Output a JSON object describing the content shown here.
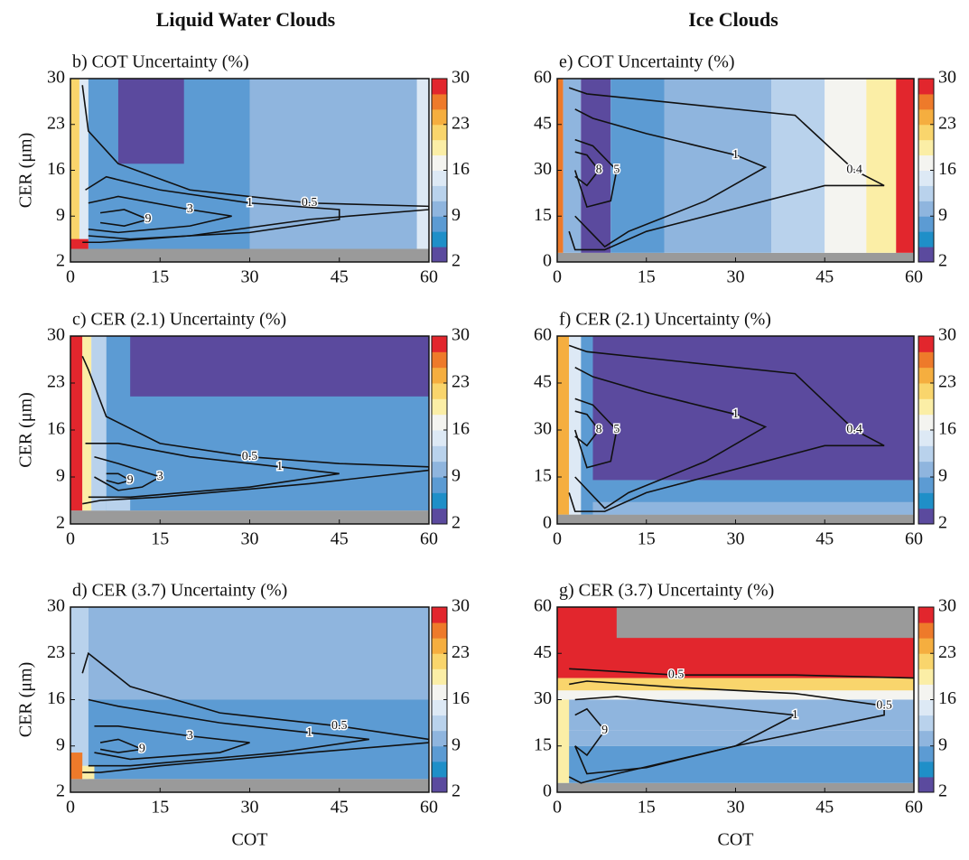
{
  "figure": {
    "column_titles": [
      "Liquid Water Clouds",
      "Ice Clouds"
    ]
  },
  "colorscale": [
    "#5b4a9e",
    "#1f8fc8",
    "#5c9bd3",
    "#8fb5de",
    "#b9d2ec",
    "#dde9f5",
    "#f4f4f0",
    "#fbeea6",
    "#f9d56c",
    "#f5ae3f",
    "#ee7a2a",
    "#e2262d"
  ],
  "missing_color": "#9a9a9a",
  "chart_data": [
    {
      "type": "heatmap",
      "title": "b) COT Uncertainty (%)",
      "ylabel": "CER (μm)",
      "xlim": [
        0,
        60
      ],
      "ylim": [
        2,
        30
      ],
      "xticks": [
        0,
        15,
        30,
        45,
        60
      ],
      "yticks": [
        2,
        9,
        16,
        23,
        30
      ],
      "clim": [
        2,
        30
      ],
      "cticks": [
        2,
        9,
        16,
        23,
        30
      ],
      "regions": [
        {
          "x": [
            0,
            60
          ],
          "y": [
            2,
            4
          ],
          "value": null
        },
        {
          "x": [
            0,
            1.5
          ],
          "y": [
            4,
            30
          ],
          "value": 22
        },
        {
          "x": [
            1.5,
            3
          ],
          "y": [
            4,
            30
          ],
          "value": 15
        },
        {
          "x": [
            3,
            30
          ],
          "y": [
            4,
            30
          ],
          "value": 7
        },
        {
          "x": [
            8,
            19
          ],
          "y": [
            17,
            30
          ],
          "value": 3
        },
        {
          "x": [
            30,
            58
          ],
          "y": [
            4,
            30
          ],
          "value": 11
        },
        {
          "x": [
            58,
            60
          ],
          "y": [
            4,
            30
          ],
          "value": 14
        },
        {
          "x": [
            0,
            3
          ],
          "y": [
            4,
            5.5
          ],
          "value": 30
        }
      ],
      "contours": [
        {
          "level": 0.5,
          "x": [
            2,
            3,
            8,
            20,
            40,
            60,
            60,
            40,
            20,
            5,
            2
          ],
          "y": [
            29,
            22,
            17,
            13,
            11,
            10.5,
            10,
            8.5,
            6,
            5,
            5
          ]
        },
        {
          "level": 1,
          "x": [
            2.5,
            6,
            15,
            30,
            45,
            45,
            30,
            10,
            3
          ],
          "y": [
            13,
            15,
            13,
            11,
            10,
            8.5,
            6.5,
            5.5,
            6
          ]
        },
        {
          "level": 3,
          "x": [
            3,
            8,
            20,
            27,
            20,
            8,
            3
          ],
          "y": [
            11,
            12,
            10,
            9,
            7.5,
            6.5,
            7
          ]
        },
        {
          "level": 9,
          "x": [
            5,
            9,
            13,
            9,
            5
          ],
          "y": [
            9.5,
            10,
            8.5,
            7.5,
            8
          ]
        }
      ]
    },
    {
      "type": "heatmap",
      "title": "c) CER (2.1) Uncertainty (%)",
      "ylabel": "CER (μm)",
      "xlim": [
        0,
        60
      ],
      "ylim": [
        2,
        30
      ],
      "xticks": [
        0,
        15,
        30,
        45,
        60
      ],
      "yticks": [
        2,
        9,
        16,
        23,
        30
      ],
      "clim": [
        2,
        30
      ],
      "cticks": [
        2,
        9,
        16,
        23,
        30
      ],
      "regions": [
        {
          "x": [
            0,
            60
          ],
          "y": [
            2,
            4
          ],
          "value": null
        },
        {
          "x": [
            0,
            2
          ],
          "y": [
            4,
            30
          ],
          "value": 30
        },
        {
          "x": [
            2,
            3.5
          ],
          "y": [
            4,
            30
          ],
          "value": 19
        },
        {
          "x": [
            3.5,
            6
          ],
          "y": [
            4,
            30
          ],
          "value": 12
        },
        {
          "x": [
            6,
            60
          ],
          "y": [
            4,
            30
          ],
          "value": 7
        },
        {
          "x": [
            10,
            60
          ],
          "y": [
            21,
            30
          ],
          "value": 3
        },
        {
          "x": [
            6,
            10
          ],
          "y": [
            4,
            6
          ],
          "value": 13
        }
      ],
      "contours": [
        {
          "level": 0.5,
          "x": [
            2,
            3,
            6,
            15,
            30,
            45,
            60,
            60,
            40,
            15,
            5,
            2
          ],
          "y": [
            27,
            25,
            18,
            14,
            12,
            11,
            10.5,
            10,
            8,
            6,
            5.5,
            5
          ]
        },
        {
          "level": 1,
          "x": [
            2.5,
            8,
            20,
            35,
            45,
            30,
            10,
            3
          ],
          "y": [
            14,
            14,
            12,
            10.5,
            9.5,
            7.5,
            6,
            6
          ]
        },
        {
          "level": 3,
          "x": [
            4,
            8,
            15,
            12,
            8,
            4
          ],
          "y": [
            12,
            11,
            9,
            7.5,
            7,
            9
          ]
        },
        {
          "level": 9,
          "x": [
            6,
            8,
            10,
            8,
            6
          ],
          "y": [
            9.5,
            9.5,
            8.5,
            8,
            8.5
          ]
        }
      ]
    },
    {
      "type": "heatmap",
      "title": "d) CER (3.7) Uncertainty (%)",
      "ylabel": "CER (μm)",
      "xlabel": "COT",
      "xlim": [
        0,
        60
      ],
      "ylim": [
        2,
        30
      ],
      "xticks": [
        0,
        15,
        30,
        45,
        60
      ],
      "yticks": [
        2,
        9,
        16,
        23,
        30
      ],
      "clim": [
        2,
        30
      ],
      "cticks": [
        2,
        9,
        16,
        23,
        30
      ],
      "regions": [
        {
          "x": [
            0,
            60
          ],
          "y": [
            2,
            4
          ],
          "value": null
        },
        {
          "x": [
            0,
            3
          ],
          "y": [
            4,
            30
          ],
          "value": 12
        },
        {
          "x": [
            3,
            60
          ],
          "y": [
            16,
            30
          ],
          "value": 11
        },
        {
          "x": [
            3,
            60
          ],
          "y": [
            4,
            16
          ],
          "value": 7
        },
        {
          "x": [
            0,
            2
          ],
          "y": [
            4,
            8
          ],
          "value": 26
        },
        {
          "x": [
            2,
            4
          ],
          "y": [
            4,
            6
          ],
          "value": 20
        }
      ],
      "contours": [
        {
          "level": 0.5,
          "x": [
            2,
            3,
            10,
            25,
            45,
            60,
            60,
            40,
            15,
            5,
            2
          ],
          "y": [
            20,
            23,
            18,
            14,
            12,
            10,
            9.5,
            8,
            6,
            5,
            5
          ]
        },
        {
          "level": 1,
          "x": [
            3,
            8,
            25,
            40,
            50,
            35,
            10,
            3
          ],
          "y": [
            16,
            15,
            12.5,
            11,
            10,
            8,
            6,
            6
          ]
        },
        {
          "level": 3,
          "x": [
            4,
            8,
            20,
            30,
            25,
            10,
            4
          ],
          "y": [
            12,
            12,
            10.5,
            9.5,
            8,
            7,
            8
          ]
        },
        {
          "level": 9,
          "x": [
            5,
            8,
            12,
            8,
            5
          ],
          "y": [
            9.5,
            10,
            8.5,
            8,
            8.5
          ]
        }
      ]
    },
    {
      "type": "heatmap",
      "title": "e) COT Uncertainty (%)",
      "xlim": [
        0,
        60
      ],
      "ylim": [
        0,
        60
      ],
      "xticks": [
        0,
        15,
        30,
        45,
        60
      ],
      "yticks": [
        0,
        15,
        30,
        45,
        60
      ],
      "clim": [
        2,
        30
      ],
      "cticks": [
        2,
        9,
        16,
        23,
        30
      ],
      "regions": [
        {
          "x": [
            0,
            60
          ],
          "y": [
            0,
            3
          ],
          "value": null
        },
        {
          "x": [
            0,
            1
          ],
          "y": [
            3,
            60
          ],
          "value": 26
        },
        {
          "x": [
            1,
            4
          ],
          "y": [
            3,
            60
          ],
          "value": 11
        },
        {
          "x": [
            4,
            9
          ],
          "y": [
            3,
            60
          ],
          "value": 3
        },
        {
          "x": [
            9,
            18
          ],
          "y": [
            3,
            60
          ],
          "value": 7
        },
        {
          "x": [
            18,
            36
          ],
          "y": [
            3,
            60
          ],
          "value": 11
        },
        {
          "x": [
            36,
            45
          ],
          "y": [
            3,
            60
          ],
          "value": 13
        },
        {
          "x": [
            45,
            52
          ],
          "y": [
            3,
            60
          ],
          "value": 16
        },
        {
          "x": [
            52,
            57
          ],
          "y": [
            3,
            60
          ],
          "value": 20
        },
        {
          "x": [
            57,
            60
          ],
          "y": [
            3,
            60
          ],
          "value": 29
        }
      ],
      "contours": [
        {
          "level": 0.4,
          "x": [
            2,
            5,
            20,
            40,
            50,
            55,
            45,
            35,
            15,
            8,
            3,
            2
          ],
          "y": [
            57,
            55,
            52,
            48,
            30,
            25,
            25,
            20,
            10,
            4,
            4,
            10
          ]
        },
        {
          "level": 1,
          "x": [
            3,
            6,
            15,
            30,
            35,
            25,
            12,
            8,
            3
          ],
          "y": [
            50,
            47,
            42,
            35,
            31,
            20,
            10,
            5,
            15
          ]
        },
        {
          "level": 5,
          "x": [
            3,
            6,
            10,
            9,
            5,
            3
          ],
          "y": [
            40,
            38,
            30,
            20,
            18,
            30
          ]
        },
        {
          "level": 8,
          "x": [
            3,
            5,
            7,
            5,
            3
          ],
          "y": [
            36,
            35,
            30,
            25,
            28
          ]
        }
      ]
    },
    {
      "type": "heatmap",
      "title": "f) CER (2.1) Uncertainty (%)",
      "xlim": [
        0,
        60
      ],
      "ylim": [
        0,
        60
      ],
      "xticks": [
        0,
        15,
        30,
        45,
        60
      ],
      "yticks": [
        0,
        15,
        30,
        45,
        60
      ],
      "clim": [
        2,
        30
      ],
      "cticks": [
        2,
        9,
        16,
        23,
        30
      ],
      "regions": [
        {
          "x": [
            0,
            60
          ],
          "y": [
            0,
            3
          ],
          "value": null
        },
        {
          "x": [
            0,
            2
          ],
          "y": [
            3,
            60
          ],
          "value": 25
        },
        {
          "x": [
            2,
            4
          ],
          "y": [
            3,
            60
          ],
          "value": 14
        },
        {
          "x": [
            4,
            6
          ],
          "y": [
            3,
            60
          ],
          "value": 7
        },
        {
          "x": [
            6,
            60
          ],
          "y": [
            14,
            60
          ],
          "value": 3
        },
        {
          "x": [
            6,
            60
          ],
          "y": [
            3,
            14
          ],
          "value": 7
        },
        {
          "x": [
            6,
            60
          ],
          "y": [
            3,
            7
          ],
          "value": 11
        }
      ],
      "contours": [
        {
          "level": 0.4,
          "x": [
            2,
            5,
            20,
            40,
            50,
            55,
            45,
            35,
            15,
            8,
            3,
            2
          ],
          "y": [
            57,
            55,
            52,
            48,
            30,
            25,
            25,
            20,
            10,
            4,
            4,
            10
          ]
        },
        {
          "level": 1,
          "x": [
            3,
            6,
            15,
            30,
            35,
            25,
            12,
            8,
            3
          ],
          "y": [
            50,
            47,
            42,
            35,
            31,
            20,
            10,
            5,
            15
          ]
        },
        {
          "level": 5,
          "x": [
            3,
            6,
            10,
            9,
            5,
            3
          ],
          "y": [
            40,
            38,
            30,
            20,
            18,
            30
          ]
        },
        {
          "level": 8,
          "x": [
            3,
            5,
            7,
            5,
            3
          ],
          "y": [
            36,
            35,
            30,
            25,
            28
          ]
        }
      ]
    },
    {
      "type": "heatmap",
      "title": "g) CER (3.7) Uncertainty (%)",
      "xlabel": "COT",
      "xlim": [
        0,
        60
      ],
      "ylim": [
        0,
        60
      ],
      "xticks": [
        0,
        15,
        30,
        45,
        60
      ],
      "yticks": [
        0,
        15,
        30,
        45,
        60
      ],
      "clim": [
        2,
        30
      ],
      "cticks": [
        2,
        9,
        16,
        23,
        30
      ],
      "regions": [
        {
          "x": [
            0,
            60
          ],
          "y": [
            0,
            3
          ],
          "value": null
        },
        {
          "x": [
            0,
            60
          ],
          "y": [
            3,
            15
          ],
          "value": 7
        },
        {
          "x": [
            0,
            60
          ],
          "y": [
            15,
            20
          ],
          "value": 9
        },
        {
          "x": [
            0,
            60
          ],
          "y": [
            20,
            30
          ],
          "value": 11
        },
        {
          "x": [
            0,
            60
          ],
          "y": [
            30,
            33
          ],
          "value": 16
        },
        {
          "x": [
            0,
            60
          ],
          "y": [
            33,
            37
          ],
          "value": 21
        },
        {
          "x": [
            0,
            60
          ],
          "y": [
            37,
            60
          ],
          "value": 30
        },
        {
          "x": [
            10,
            60
          ],
          "y": [
            50,
            60
          ],
          "value": null
        },
        {
          "x": [
            0,
            2
          ],
          "y": [
            3,
            30
          ],
          "value": 19
        }
      ],
      "contours": [
        {
          "level": 0.5,
          "x": [
            2,
            20,
            40,
            60
          ],
          "y": [
            40,
            38,
            38,
            37
          ]
        },
        {
          "level": 0.5,
          "x": [
            2,
            5,
            20,
            40,
            55,
            55,
            30,
            10,
            4,
            2
          ],
          "y": [
            35,
            36,
            34,
            32,
            28,
            25,
            15,
            6,
            3,
            5
          ]
        },
        {
          "level": 1,
          "x": [
            3,
            10,
            25,
            40,
            30,
            15,
            5,
            3
          ],
          "y": [
            30,
            31,
            28,
            25,
            15,
            8,
            6,
            15
          ]
        },
        {
          "level": 9,
          "x": [
            3,
            5,
            8,
            5,
            3
          ],
          "y": [
            25,
            27,
            20,
            12,
            15
          ]
        }
      ]
    }
  ]
}
